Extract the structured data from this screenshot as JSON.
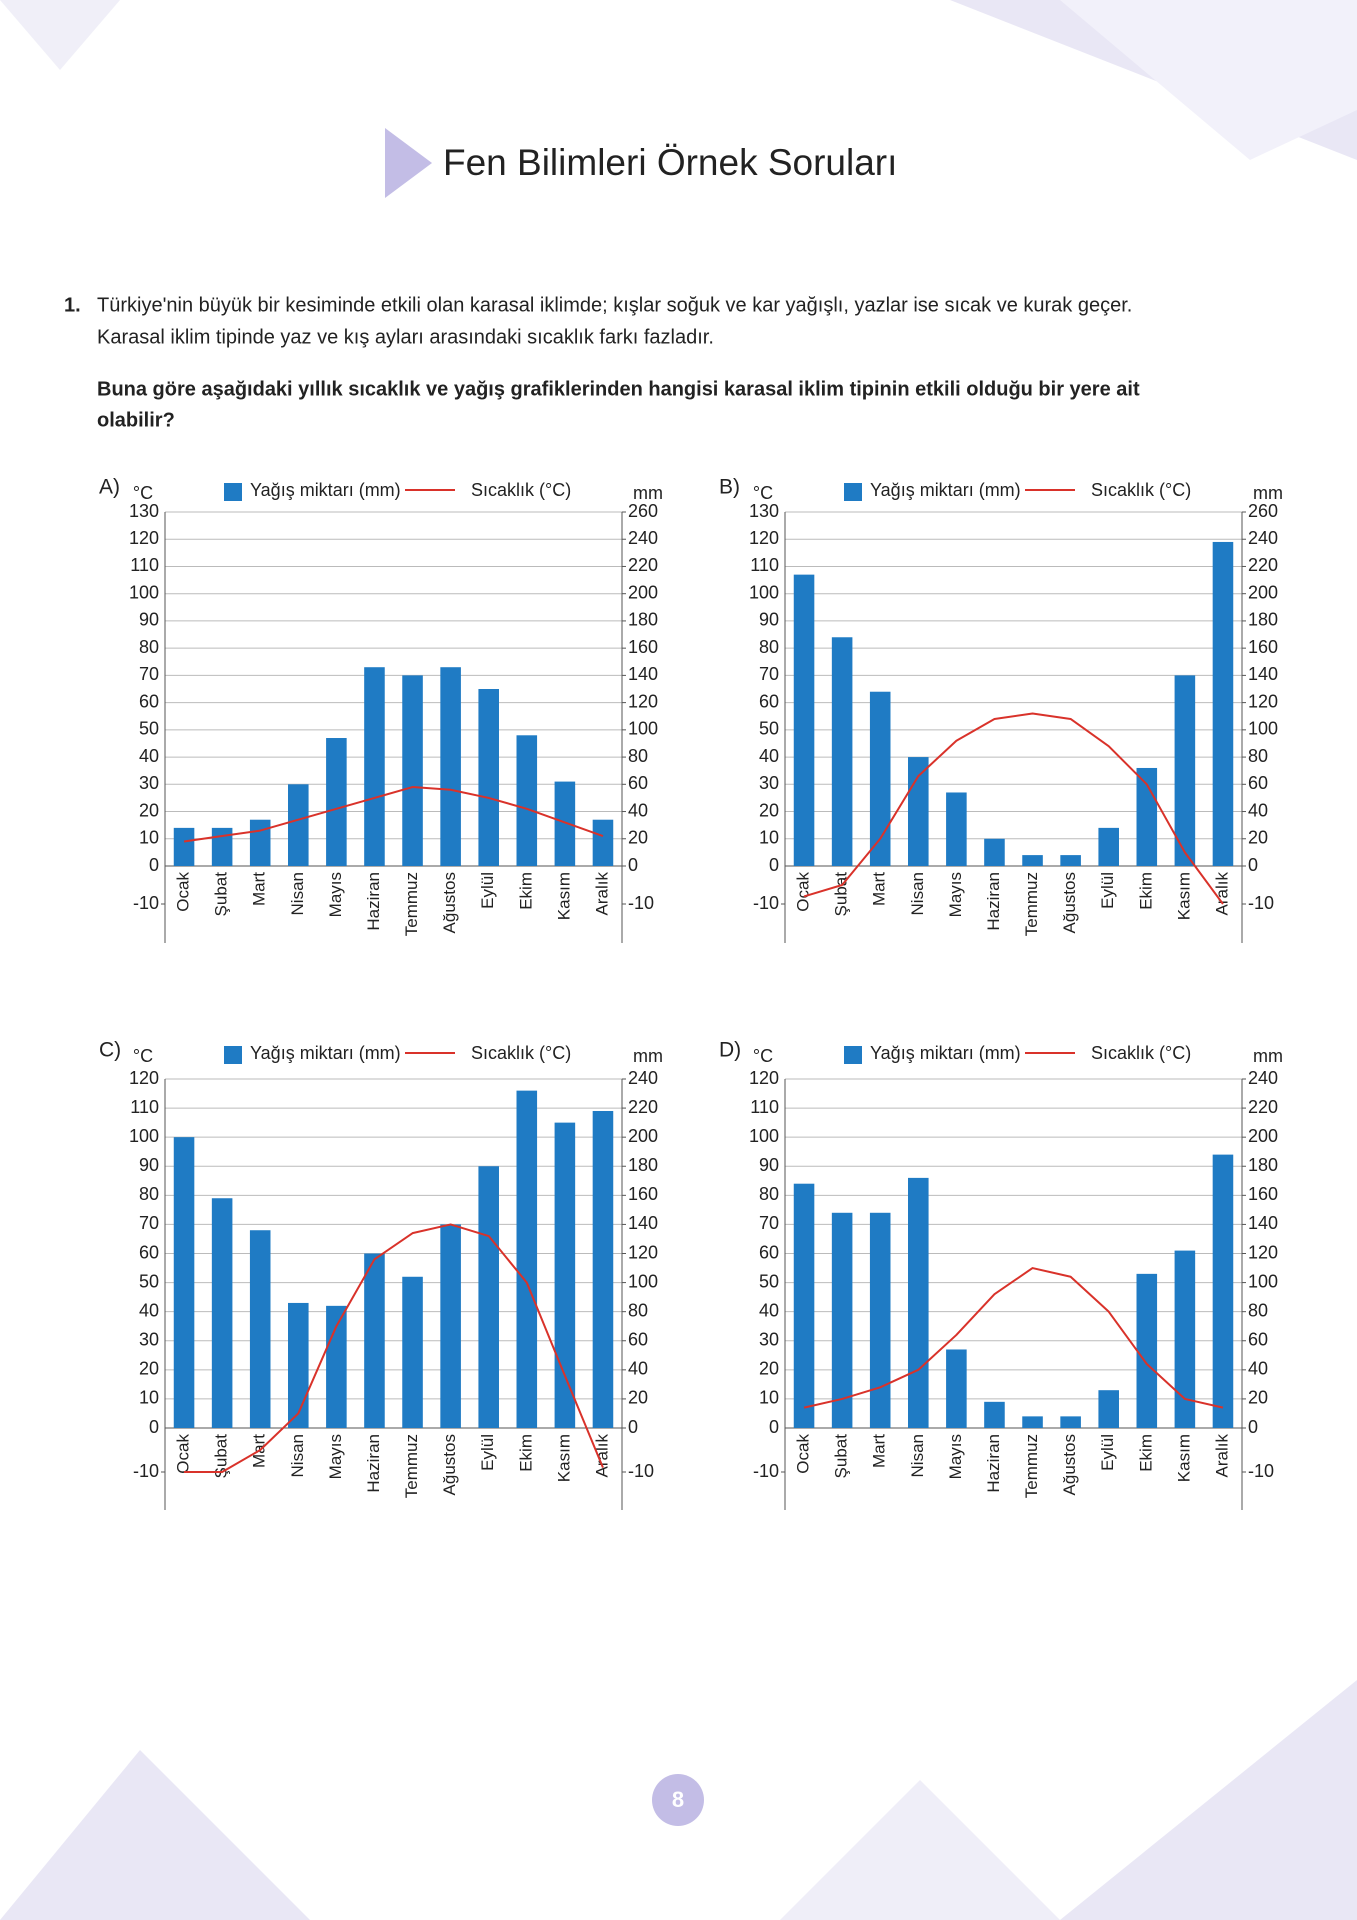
{
  "header": {
    "title": "Fen Bilimleri Örnek Soruları"
  },
  "question": {
    "number": "1.",
    "text": [
      "Türkiye'nin büyük bir kesiminde etkili olan karasal iklimde; kışlar soğuk ve kar yağışlı, yazlar ise sıcak ve kurak geçer.",
      "Karasal iklim tipinde yaz ve kış ayları arasındaki sıcaklık farkı fazladır."
    ],
    "prompt": [
      "Buna göre aşağıdaki yıllık sıcaklık ve yağış grafiklerinden hangisi karasal iklim tipinin etkili olduğu bir yere ait",
      "olabilir?"
    ]
  },
  "chart_data": [
    {
      "type": "combo",
      "label": "A)",
      "ylabel": "°C",
      "y2label": "mm",
      "categories": [
        "Ocak",
        "Şubat",
        "Mart",
        "Nisan",
        "Mayıs",
        "Haziran",
        "Temmuz",
        "Ağustos",
        "Eylül",
        "Ekim",
        "Kasım",
        "Aralık"
      ],
      "series": [
        {
          "name": "Yağış miktarı (mm)",
          "type": "bar",
          "axis": "y2",
          "color": "#1f7bc4",
          "values": [
            28,
            28,
            34,
            60,
            94,
            146,
            140,
            146,
            130,
            96,
            62,
            34
          ]
        },
        {
          "name": "Sıcaklık (°C)",
          "type": "line",
          "color": "#d9322a",
          "values": [
            9,
            11,
            13,
            17,
            21,
            25,
            29,
            28,
            25,
            21,
            16,
            11
          ]
        }
      ],
      "ylim": [
        -10,
        130
      ],
      "yticks": [
        -10,
        0,
        10,
        20,
        30,
        40,
        50,
        60,
        70,
        80,
        90,
        100,
        110,
        120,
        130
      ],
      "y2lim": [
        -10,
        260
      ],
      "y2ticks": [
        -10,
        0,
        20,
        40,
        60,
        80,
        100,
        120,
        140,
        160,
        180,
        200,
        220,
        240,
        260
      ],
      "grid": true
    },
    {
      "type": "combo",
      "label": "B)",
      "ylabel": "°C",
      "y2label": "mm",
      "categories": [
        "Ocak",
        "Şubat",
        "Mart",
        "Nisan",
        "Mayıs",
        "Haziran",
        "Temmuz",
        "Ağustos",
        "Eylül",
        "Ekim",
        "Kasım",
        "Aralık"
      ],
      "series": [
        {
          "name": "Yağış miktarı (mm)",
          "type": "bar",
          "axis": "y2",
          "color": "#1f7bc4",
          "values": [
            214,
            168,
            128,
            80,
            54,
            20,
            8,
            8,
            28,
            72,
            140,
            238
          ]
        },
        {
          "name": "Sıcaklık (°C)",
          "type": "line",
          "color": "#d9322a",
          "values": [
            -8,
            -5,
            10,
            33,
            46,
            54,
            56,
            54,
            44,
            30,
            5,
            -10
          ]
        }
      ],
      "ylim": [
        -10,
        130
      ],
      "yticks": [
        -10,
        0,
        10,
        20,
        30,
        40,
        50,
        60,
        70,
        80,
        90,
        100,
        110,
        120,
        130
      ],
      "y2lim": [
        -10,
        260
      ],
      "y2ticks": [
        -10,
        0,
        20,
        40,
        60,
        80,
        100,
        120,
        140,
        160,
        180,
        200,
        220,
        240,
        260
      ],
      "grid": true
    },
    {
      "type": "combo",
      "label": "C)",
      "ylabel": "°C",
      "y2label": "mm",
      "categories": [
        "Ocak",
        "Şubat",
        "Mart",
        "Nisan",
        "Mayıs",
        "Haziran",
        "Temmuz",
        "Ağustos",
        "Eylül",
        "Ekim",
        "Kasım",
        "Aralık"
      ],
      "series": [
        {
          "name": "Yağış miktarı (mm)",
          "type": "bar",
          "axis": "y2",
          "color": "#1f7bc4",
          "values": [
            200,
            158,
            136,
            86,
            84,
            120,
            104,
            140,
            180,
            232,
            210,
            218
          ]
        },
        {
          "name": "Sıcaklık (°C)",
          "type": "line",
          "color": "#d9322a",
          "values": [
            -10,
            -10,
            -5,
            5,
            35,
            58,
            67,
            70,
            66,
            50,
            18,
            -9
          ]
        }
      ],
      "ylim": [
        -10,
        120
      ],
      "yticks": [
        -10,
        0,
        10,
        20,
        30,
        40,
        50,
        60,
        70,
        80,
        90,
        100,
        110,
        120
      ],
      "y2lim": [
        -10,
        240
      ],
      "y2ticks": [
        -10,
        0,
        20,
        40,
        60,
        80,
        100,
        120,
        140,
        160,
        180,
        200,
        220,
        240
      ],
      "grid": true
    },
    {
      "type": "combo",
      "label": "D)",
      "ylabel": "°C",
      "y2label": "mm",
      "categories": [
        "Ocak",
        "Şubat",
        "Mart",
        "Nisan",
        "Mayıs",
        "Haziran",
        "Temmuz",
        "Ağustos",
        "Eylül",
        "Ekim",
        "Kasım",
        "Aralık"
      ],
      "series": [
        {
          "name": "Yağış miktarı (mm)",
          "type": "bar",
          "axis": "y2",
          "color": "#1f7bc4",
          "values": [
            168,
            148,
            148,
            172,
            54,
            18,
            8,
            8,
            26,
            106,
            122,
            188
          ]
        },
        {
          "name": "Sıcaklık (°C)",
          "type": "line",
          "color": "#d9322a",
          "values": [
            7,
            10,
            14,
            20,
            32,
            46,
            55,
            52,
            40,
            22,
            10,
            7
          ]
        }
      ],
      "ylim": [
        -10,
        120
      ],
      "yticks": [
        -10,
        0,
        10,
        20,
        30,
        40,
        50,
        60,
        70,
        80,
        90,
        100,
        110,
        120
      ],
      "y2lim": [
        -10,
        240
      ],
      "y2ticks": [
        -10,
        0,
        20,
        40,
        60,
        80,
        100,
        120,
        140,
        160,
        180,
        200,
        220,
        240
      ],
      "grid": true
    }
  ],
  "footer": {
    "page": "8"
  }
}
